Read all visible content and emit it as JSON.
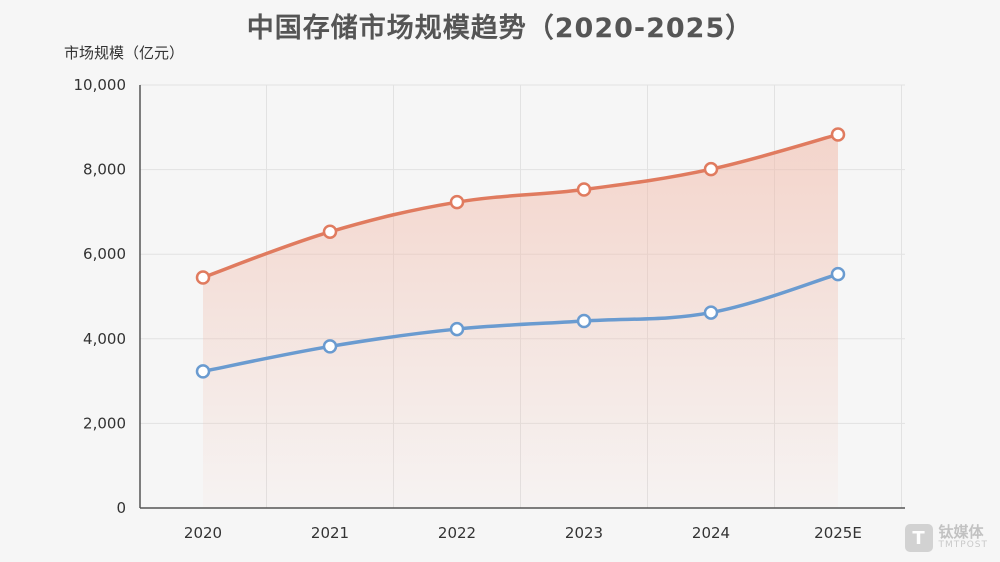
{
  "chart_data": {
    "type": "line",
    "title": "中国存储市场规模趋势（2020-2025）",
    "xlabel": "",
    "ylabel": "市场规模（亿元）",
    "categories": [
      "2020",
      "2021",
      "2022",
      "2023",
      "2024",
      "2025E"
    ],
    "series": [
      {
        "values": [
          5450,
          6530,
          7230,
          7530,
          8010,
          8830
        ],
        "color": "#e07b5f"
      },
      {
        "values": [
          3230,
          3820,
          4230,
          4420,
          4620,
          5530
        ],
        "color": "#6a9bd0"
      }
    ],
    "ylim": [
      0,
      10000
    ],
    "yticks": [
      "0",
      "2,000",
      "4,000",
      "6,000",
      "8,000",
      "10,000"
    ],
    "grid": true,
    "area_fill_color": "#f3c9bd"
  },
  "watermark": {
    "logo_char": "T",
    "name": "钛媒体",
    "name_en": "TMTPOST"
  }
}
